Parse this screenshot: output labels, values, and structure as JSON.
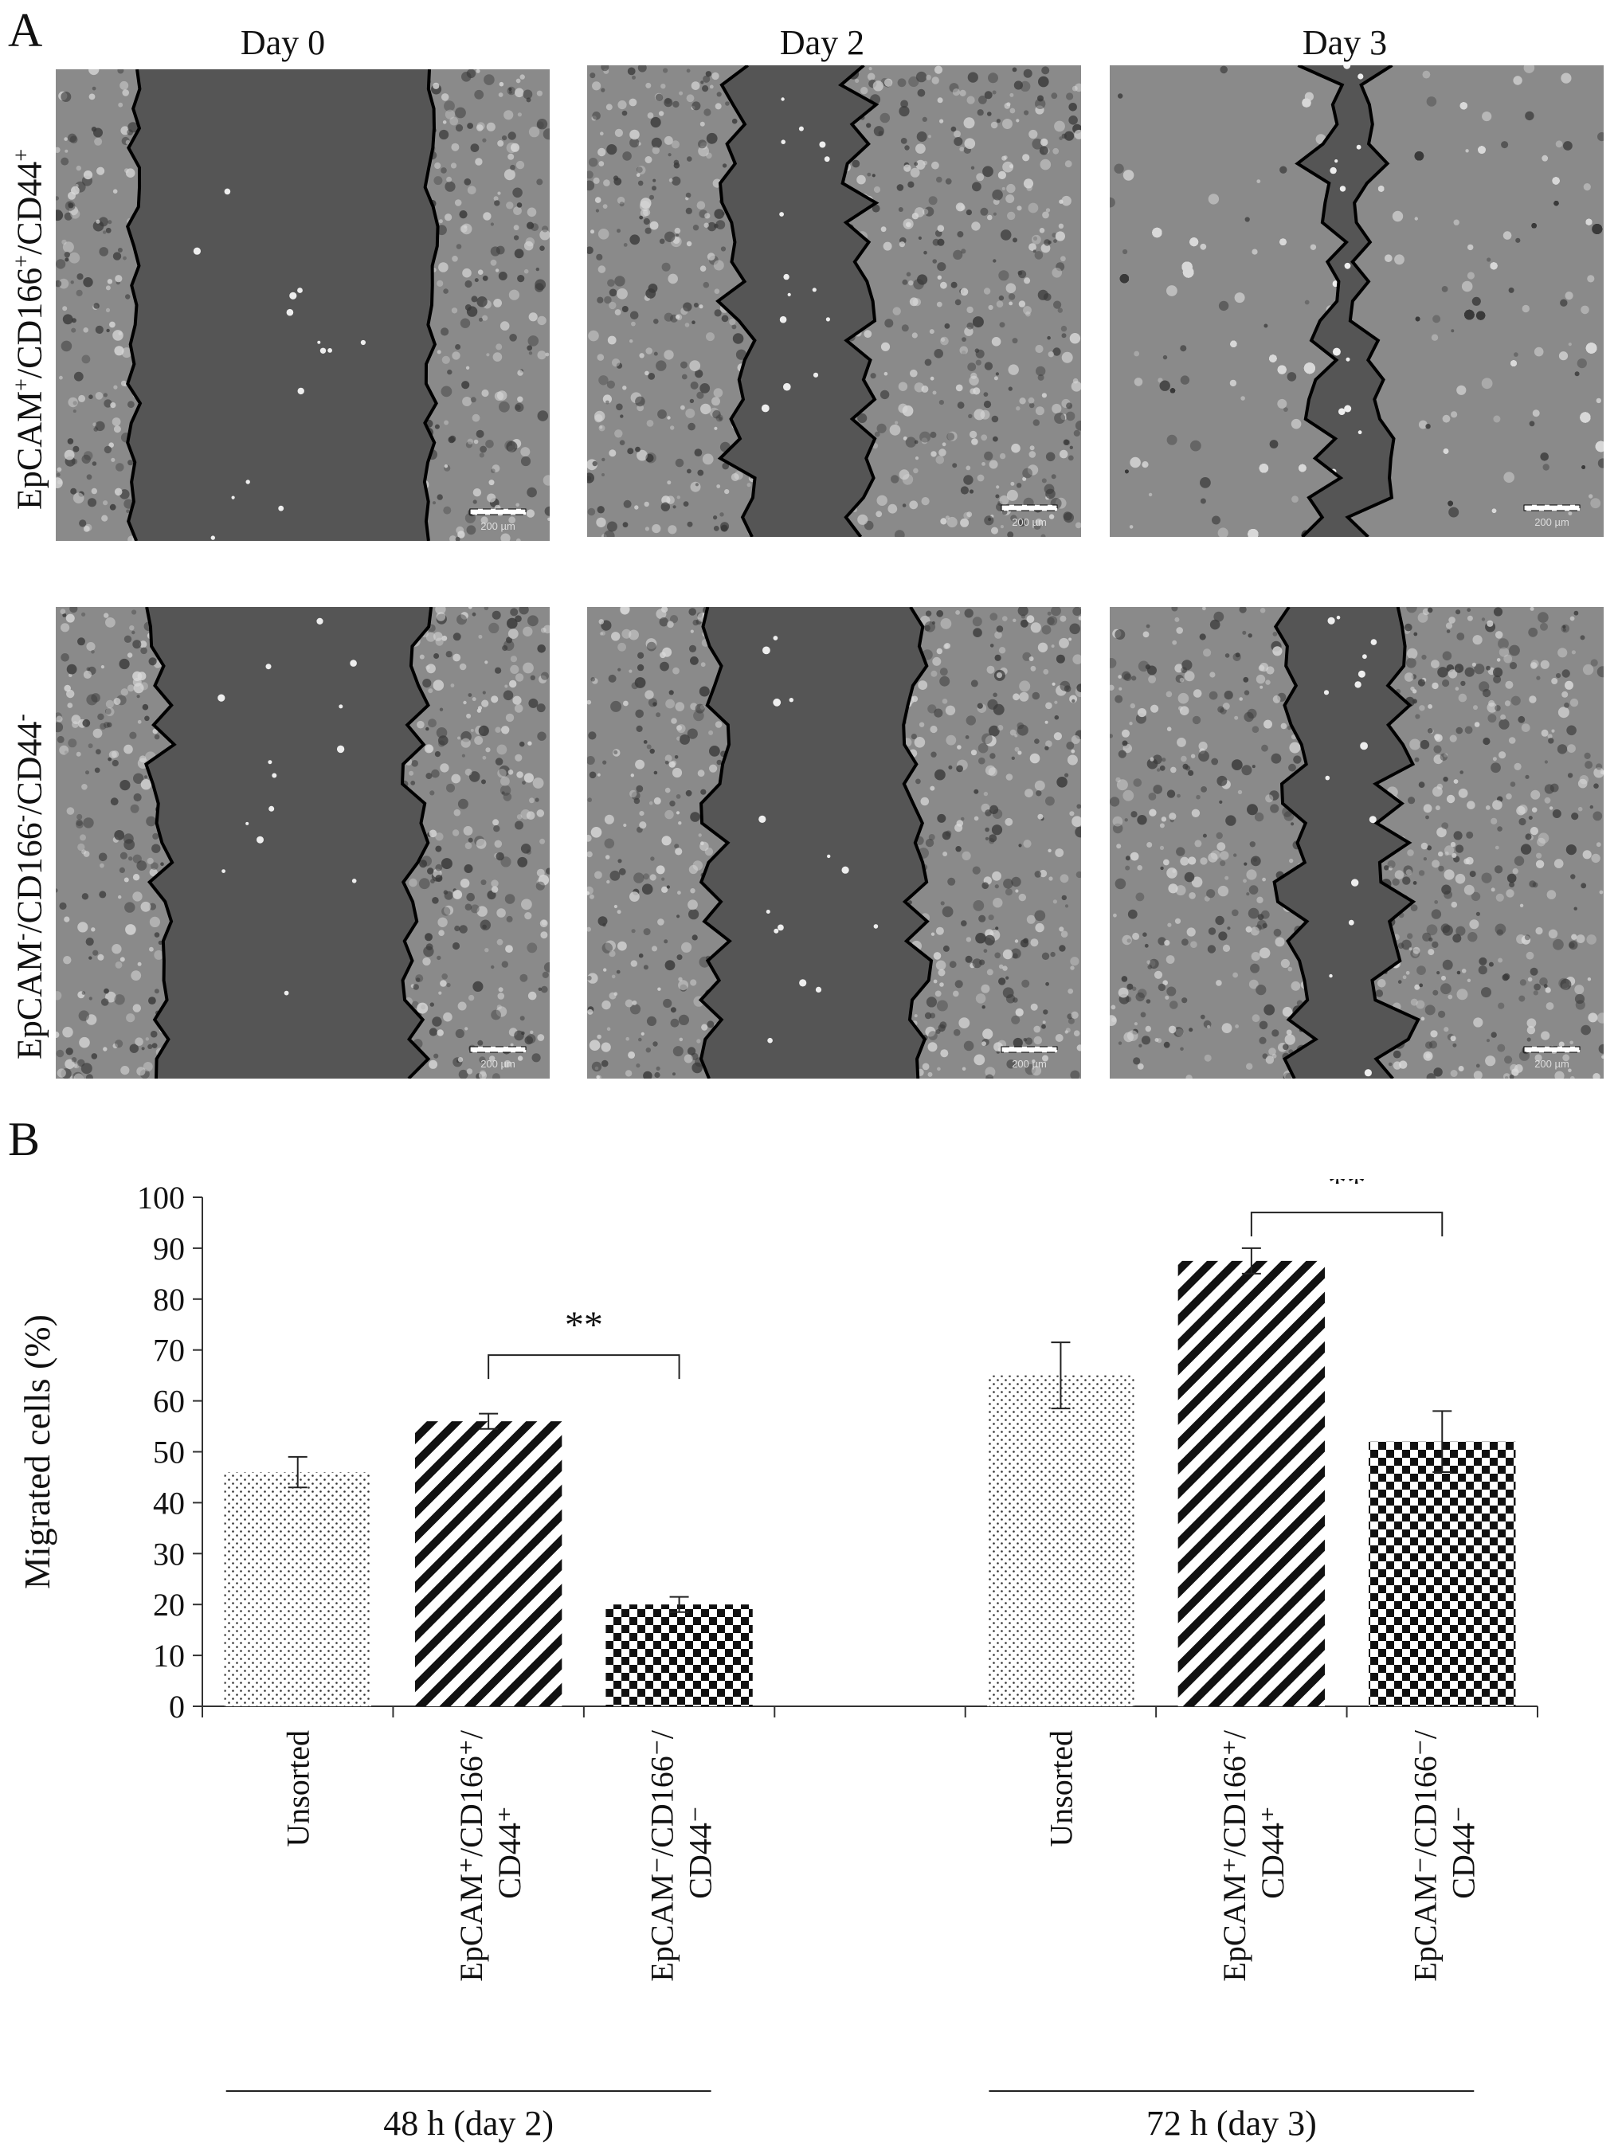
{
  "panel_a": {
    "letter": "A",
    "columns": [
      "Day 0",
      "Day 2",
      "Day 3"
    ],
    "rows": [
      {
        "label_main": "EpCAM",
        "s1": "+",
        "m1": "/CD166",
        "s2": "+",
        "m2": "/CD44",
        "s3": "+"
      },
      {
        "label_main": "EpCAM",
        "s1": "-",
        "m1": "/CD166",
        "s2": "-",
        "m2": "/CD44",
        "s3": "-"
      }
    ],
    "scale_bar_text": "200 µm"
  },
  "panel_b": {
    "letter": "B"
  },
  "chart_data": {
    "type": "bar",
    "ylabel": "Migrated cells (%)",
    "ylim": [
      0,
      100
    ],
    "yticks": [
      0,
      10,
      20,
      30,
      40,
      50,
      60,
      70,
      80,
      90,
      100
    ],
    "groups": [
      {
        "label": "48 h (day 2)",
        "bars": [
          {
            "category": "Unsorted",
            "line1": "Unsorted",
            "line2": "",
            "value": 46,
            "error": 3,
            "pattern": "dots"
          },
          {
            "category": "EpCAM+/CD166+/CD44+",
            "line1": "EpCAM⁺/CD166⁺/",
            "line2": "CD44⁺",
            "value": 56,
            "error": 1.5,
            "pattern": "stripes"
          },
          {
            "category": "EpCAM-/CD166-/CD44-",
            "line1": "EpCAM⁻/CD166⁻/",
            "line2": "CD44⁻",
            "value": 20,
            "error": 1.5,
            "pattern": "checker"
          }
        ],
        "significance": {
          "text": "**",
          "from": 1,
          "to": 2,
          "y": 69
        }
      },
      {
        "label": "72 h (day 3)",
        "bars": [
          {
            "category": "Unsorted",
            "line1": "Unsorted",
            "line2": "",
            "value": 65,
            "error": 6.5,
            "pattern": "dots"
          },
          {
            "category": "EpCAM+/CD166+/CD44+",
            "line1": "EpCAM⁺/CD166⁺/",
            "line2": "CD44⁺",
            "value": 87.5,
            "error": 2.5,
            "pattern": "stripes"
          },
          {
            "category": "EpCAM-/CD166-/CD44-",
            "line1": "EpCAM⁻/CD166⁻/",
            "line2": "CD44⁻",
            "value": 52,
            "error": 6,
            "pattern": "checker"
          }
        ],
        "significance": {
          "text": "**",
          "from": 1,
          "to": 2,
          "y": 97
        }
      }
    ]
  }
}
